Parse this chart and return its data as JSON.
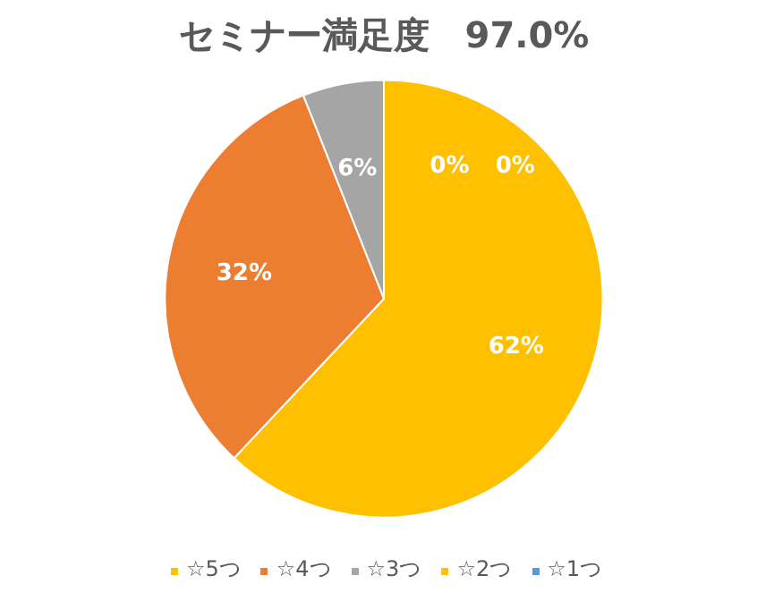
{
  "chart_data": {
    "type": "pie",
    "title": "セミナー満足度　97.0%",
    "categories": [
      "☆5つ",
      "☆4つ",
      "☆3つ",
      "☆2つ",
      "☆1つ"
    ],
    "values": [
      62,
      32,
      6,
      0,
      0
    ],
    "colors": [
      "#ffc000",
      "#ed7d31",
      "#a5a5a5",
      "#ffc000",
      "#5b9bd5"
    ],
    "value_labels": [
      "62%",
      "32%",
      "6%",
      "0%",
      "0%"
    ],
    "legend": "bottom"
  }
}
